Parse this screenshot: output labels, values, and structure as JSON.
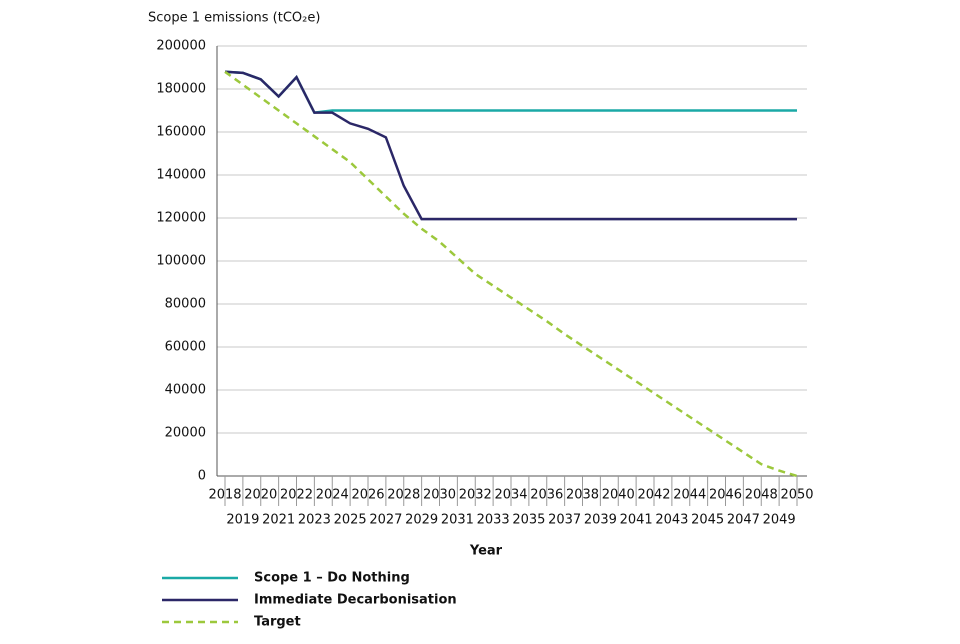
{
  "chart_data": {
    "type": "line",
    "title": "Scope 1 emissions (tCO₂e)",
    "x_label": "Year",
    "x": [
      2018,
      2019,
      2020,
      2021,
      2022,
      2023,
      2024,
      2025,
      2026,
      2027,
      2028,
      2029,
      2030,
      2031,
      2032,
      2033,
      2034,
      2035,
      2036,
      2037,
      2038,
      2039,
      2040,
      2041,
      2042,
      2043,
      2044,
      2045,
      2046,
      2047,
      2048,
      2049,
      2050
    ],
    "xlim": [
      2018,
      2050
    ],
    "xticks": [
      2018,
      2019,
      2020,
      2021,
      2022,
      2023,
      2024,
      2025,
      2026,
      2027,
      2028,
      2029,
      2030,
      2031,
      2032,
      2033,
      2034,
      2035,
      2036,
      2037,
      2038,
      2039,
      2040,
      2041,
      2042,
      2043,
      2044,
      2045,
      2046,
      2047,
      2048,
      2049,
      2050
    ],
    "ylim": [
      0,
      200000
    ],
    "yticks": [
      0,
      20000,
      40000,
      60000,
      80000,
      100000,
      120000,
      140000,
      160000,
      180000,
      200000
    ],
    "grid": true,
    "legend": "bottom",
    "series": [
      {
        "name": "Scope 1 – Do Nothing",
        "color": "#1aa9a6",
        "dash": false,
        "values": [
          188000,
          187500,
          184500,
          176500,
          185500,
          169000,
          170000,
          170000,
          170000,
          170000,
          170000,
          170000,
          170000,
          170000,
          170000,
          170000,
          170000,
          170000,
          170000,
          170000,
          170000,
          170000,
          170000,
          170000,
          170000,
          170000,
          170000,
          170000,
          170000,
          170000,
          170000,
          170000,
          170000
        ]
      },
      {
        "name": "Immediate Decarbonisation",
        "color": "#2b2767",
        "dash": false,
        "values": [
          188000,
          187500,
          184500,
          176500,
          185500,
          169000,
          169000,
          164000,
          161500,
          157500,
          135000,
          119500,
          119500,
          119500,
          119500,
          119500,
          119500,
          119500,
          119500,
          119500,
          119500,
          119500,
          119500,
          119500,
          119500,
          119500,
          119500,
          119500,
          119500,
          119500,
          119500,
          119500,
          119500
        ]
      },
      {
        "name": "Target",
        "color": "#9cc83c",
        "dash": true,
        "values": [
          188000,
          182000,
          176000,
          170000,
          164000,
          158000,
          152000,
          146000,
          138000,
          130000,
          122000,
          115000,
          109000,
          101500,
          94000,
          88500,
          83000,
          77500,
          72000,
          66000,
          60500,
          55000,
          49500,
          44000,
          38500,
          33000,
          27500,
          22000,
          16500,
          11000,
          5500,
          2500,
          0
        ]
      }
    ]
  }
}
